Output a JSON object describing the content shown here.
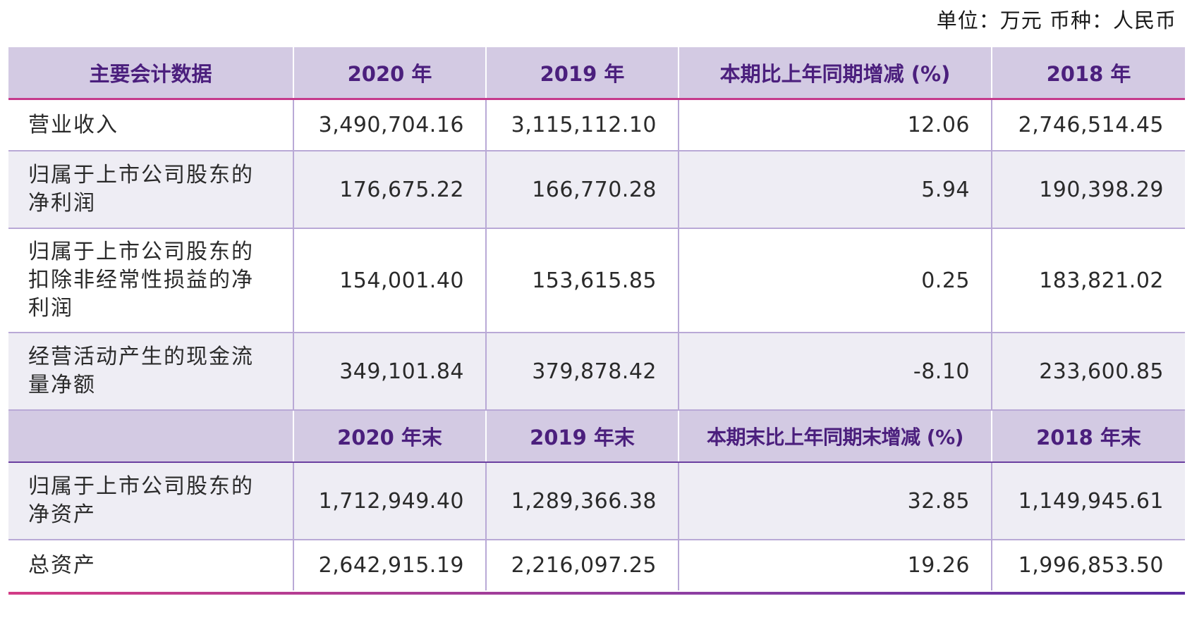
{
  "unit_note": "单位：万元  币种：人民币",
  "header_main": {
    "col0": "主要会计数据",
    "col1": "2020 年",
    "col2": "2019 年",
    "col3": "本期比上年同期增减 (%)",
    "col4": "2018 年"
  },
  "rows_top": [
    {
      "label": "营业收入",
      "v2020": "3,490,704.16",
      "v2019": "3,115,112.10",
      "change": "12.06",
      "v2018": "2,746,514.45"
    },
    {
      "label": "归属于上市公司股东的净利润",
      "v2020": "176,675.22",
      "v2019": "166,770.28",
      "change": "5.94",
      "v2018": "190,398.29"
    },
    {
      "label": "归属于上市公司股东的扣除非经常性损益的净利润",
      "v2020": "154,001.40",
      "v2019": "153,615.85",
      "change": "0.25",
      "v2018": "183,821.02"
    },
    {
      "label": "经营活动产生的现金流量净额",
      "v2020": "349,101.84",
      "v2019": "379,878.42",
      "change": "-8.10",
      "v2018": "233,600.85"
    }
  ],
  "header_sub": {
    "col0": "",
    "col1": "2020 年末",
    "col2": "2019 年末",
    "col3": "本期末比上年同期末增减 (%)",
    "col4": "2018 年末"
  },
  "rows_bottom": [
    {
      "label": "归属于上市公司股东的净资产",
      "v2020": "1,712,949.40",
      "v2019": "1,289,366.38",
      "change": "32.85",
      "v2018": "1,149,945.61"
    },
    {
      "label": "总资产",
      "v2020": "2,642,915.19",
      "v2019": "2,216,097.25",
      "change": "19.26",
      "v2018": "1,996,853.50"
    }
  ],
  "colors": {
    "header_bg": "#d3cae3",
    "header_text": "#4b1f7d",
    "row_alt_bg": "#eeedf4",
    "grid": "#b9a9d6",
    "accent_magenta": "#c53a8c"
  }
}
